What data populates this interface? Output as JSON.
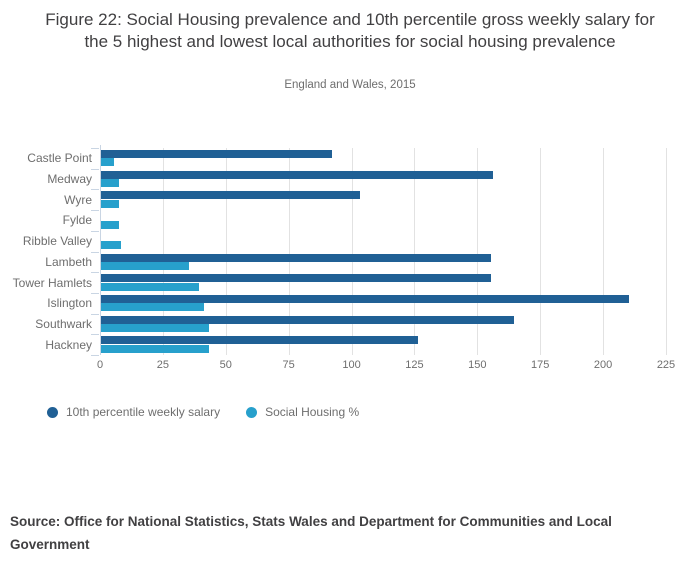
{
  "chart_data": {
    "type": "bar",
    "orientation": "horizontal",
    "title": "Figure 22: Social Housing prevalence and 10th percentile gross weekly salary for the 5 highest and lowest local authorities for social housing prevalence",
    "subtitle": "England and Wales, 2015",
    "source": "Source: Office for National Statistics, Stats Wales and Department for Communities and Local Government",
    "categories": [
      "Castle Point",
      "Medway",
      "Wyre",
      "Fylde",
      "Ribble Valley",
      "Lambeth",
      "Tower Hamlets",
      "Islington",
      "Southwark",
      "Hackney"
    ],
    "series": [
      {
        "name": "10th percentile weekly salary",
        "color": "#206095",
        "values": [
          92,
          156,
          103,
          null,
          null,
          155,
          155,
          210,
          164,
          126
        ]
      },
      {
        "name": "Social Housing %",
        "color": "#27a0cc",
        "values": [
          5,
          7,
          7,
          7,
          8,
          35,
          39,
          41,
          43,
          43
        ]
      }
    ],
    "xlabel": "",
    "ylabel": "",
    "xlim": [
      0,
      225
    ],
    "xticks": [
      0,
      25,
      50,
      75,
      100,
      125,
      150,
      175,
      200,
      225
    ],
    "grid": "vertical",
    "legend_position": "bottom-left",
    "palette": {
      "salary_bar": "#206095",
      "social_housing_bar": "#27a0cc",
      "gridline": "#e2e2e2",
      "axis_line": "#c9d5e3",
      "title_text": "#414042",
      "muted_text": "#6e6e6e"
    }
  }
}
